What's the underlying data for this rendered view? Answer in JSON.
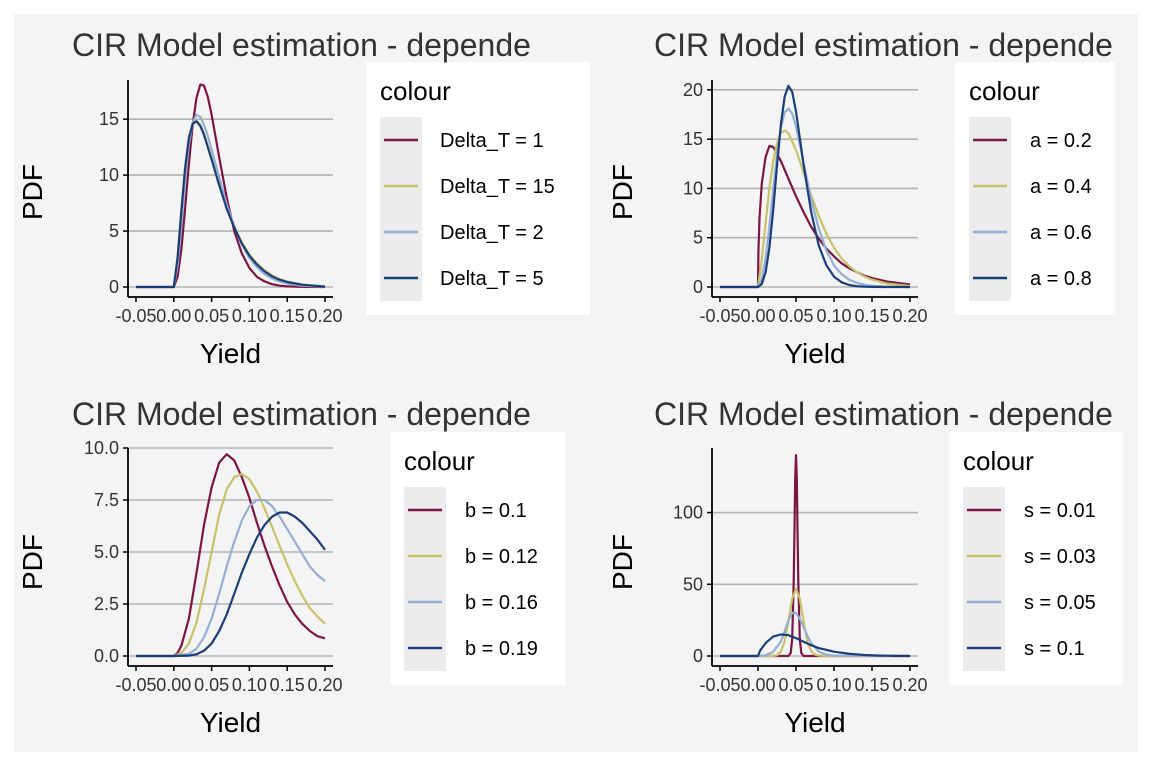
{
  "page": {
    "background": "#f4f4f4",
    "panel_background": "#ffffff"
  },
  "colors": {
    "maroon": "#7b1642",
    "khaki": "#c9c169",
    "lightblue": "#95aed4",
    "navy": "#1a3f78",
    "grid": "#b3b3b3",
    "legend_key_bg": "#ececec",
    "text": "#333333",
    "axis": "#000000"
  },
  "chart_data": [
    {
      "type": "line",
      "title": "CIR Model estimation - depende",
      "xlabel": "Yield",
      "ylabel": "PDF",
      "xlim": [
        -0.05,
        0.2
      ],
      "ylim": [
        0,
        18.5
      ],
      "x_ticks": [
        -0.05,
        0.0,
        0.05,
        0.1,
        0.15,
        0.2
      ],
      "x_tick_labels": [
        "-0.05",
        "0.00",
        "0.05",
        "0.10",
        "0.15",
        "0.20"
      ],
      "y_ticks": [
        0,
        5,
        10,
        15
      ],
      "y_tick_labels": [
        "0",
        "5",
        "10",
        "15"
      ],
      "grid": "horizontal",
      "legend": {
        "title": "colour",
        "position": "right"
      },
      "series": [
        {
          "name": "Delta_T = 1",
          "color": "#7b1642",
          "x": [
            -0.05,
            0.0,
            0.005,
            0.01,
            0.015,
            0.02,
            0.025,
            0.03,
            0.035,
            0.04,
            0.045,
            0.05,
            0.06,
            0.07,
            0.08,
            0.09,
            0.1,
            0.11,
            0.12,
            0.13,
            0.14,
            0.15,
            0.17,
            0.2
          ],
          "y": [
            0,
            0,
            0.9,
            3.4,
            7.0,
            11.0,
            14.5,
            16.9,
            18.1,
            18.0,
            17.0,
            15.4,
            11.6,
            8.0,
            5.0,
            3.0,
            1.7,
            0.9,
            0.5,
            0.25,
            0.12,
            0.06,
            0.01,
            0
          ]
        },
        {
          "name": "Delta_T = 15",
          "color": "#c9c169",
          "x": [
            -0.05,
            0.0,
            0.005,
            0.01,
            0.015,
            0.02,
            0.025,
            0.03,
            0.035,
            0.04,
            0.05,
            0.06,
            0.07,
            0.08,
            0.09,
            0.1,
            0.11,
            0.12,
            0.13,
            0.14,
            0.15,
            0.17,
            0.2
          ],
          "y": [
            0,
            0,
            2.8,
            7.0,
            10.8,
            13.4,
            14.6,
            14.9,
            14.5,
            13.7,
            11.5,
            9.2,
            7.1,
            5.4,
            4.0,
            2.9,
            2.1,
            1.5,
            1.05,
            0.7,
            0.5,
            0.22,
            0.05
          ]
        },
        {
          "name": "Delta_T = 2",
          "color": "#95aed4",
          "x": [
            -0.05,
            0.0,
            0.005,
            0.01,
            0.015,
            0.02,
            0.025,
            0.03,
            0.035,
            0.04,
            0.045,
            0.05,
            0.06,
            0.07,
            0.08,
            0.09,
            0.1,
            0.11,
            0.12,
            0.13,
            0.14,
            0.15,
            0.17,
            0.2
          ],
          "y": [
            0,
            0,
            1.9,
            5.6,
            9.6,
            12.8,
            14.7,
            15.4,
            15.2,
            14.5,
            13.5,
            12.3,
            9.8,
            7.4,
            5.4,
            3.8,
            2.6,
            1.75,
            1.15,
            0.75,
            0.48,
            0.3,
            0.11,
            0.02
          ]
        },
        {
          "name": "Delta_T = 5",
          "color": "#1a3f78",
          "x": [
            -0.05,
            0.0,
            0.005,
            0.01,
            0.015,
            0.02,
            0.025,
            0.03,
            0.035,
            0.04,
            0.05,
            0.06,
            0.07,
            0.08,
            0.09,
            0.1,
            0.11,
            0.12,
            0.13,
            0.14,
            0.15,
            0.17,
            0.2
          ],
          "y": [
            0,
            0,
            2.6,
            6.8,
            10.6,
            13.3,
            14.6,
            14.8,
            14.4,
            13.6,
            11.4,
            9.1,
            7.0,
            5.3,
            3.9,
            2.8,
            2.0,
            1.4,
            0.95,
            0.65,
            0.45,
            0.2,
            0.04
          ]
        }
      ]
    },
    {
      "type": "line",
      "title": "CIR Model estimation - depende",
      "xlabel": "Yield",
      "ylabel": "PDF",
      "xlim": [
        -0.05,
        0.2
      ],
      "ylim": [
        0,
        21
      ],
      "x_ticks": [
        -0.05,
        0.0,
        0.05,
        0.1,
        0.15,
        0.2
      ],
      "x_tick_labels": [
        "-0.05",
        "0.00",
        "0.05",
        "0.10",
        "0.15",
        "0.20"
      ],
      "y_ticks": [
        0,
        5,
        10,
        15,
        20
      ],
      "y_tick_labels": [
        "0",
        "5",
        "10",
        "15",
        "20"
      ],
      "grid": "horizontal",
      "legend": {
        "title": "colour",
        "position": "right"
      },
      "series": [
        {
          "name": "a = 0.2",
          "color": "#7b1642",
          "x": [
            -0.05,
            0.0,
            0.0005,
            0.002,
            0.005,
            0.01,
            0.015,
            0.02,
            0.03,
            0.04,
            0.05,
            0.06,
            0.07,
            0.08,
            0.09,
            0.1,
            0.11,
            0.12,
            0.13,
            0.14,
            0.15,
            0.17,
            0.2
          ],
          "y": [
            0,
            0,
            3.5,
            7.0,
            10.5,
            13.2,
            14.3,
            14.2,
            12.8,
            11.0,
            9.2,
            7.6,
            6.1,
            4.9,
            3.9,
            3.1,
            2.4,
            1.9,
            1.5,
            1.15,
            0.9,
            0.55,
            0.25
          ]
        },
        {
          "name": "a = 0.4",
          "color": "#c9c169",
          "x": [
            -0.05,
            0.0,
            0.005,
            0.01,
            0.015,
            0.02,
            0.025,
            0.03,
            0.035,
            0.04,
            0.05,
            0.06,
            0.07,
            0.08,
            0.09,
            0.1,
            0.11,
            0.12,
            0.13,
            0.14,
            0.15,
            0.17,
            0.2
          ],
          "y": [
            0,
            0,
            2.8,
            6.5,
            10.0,
            12.8,
            14.6,
            15.6,
            15.9,
            15.6,
            13.9,
            11.6,
            9.3,
            7.2,
            5.4,
            4.0,
            2.9,
            2.1,
            1.5,
            1.05,
            0.75,
            0.35,
            0.1
          ]
        },
        {
          "name": "a = 0.6",
          "color": "#95aed4",
          "x": [
            -0.05,
            0.0,
            0.005,
            0.01,
            0.015,
            0.02,
            0.025,
            0.03,
            0.035,
            0.04,
            0.045,
            0.05,
            0.06,
            0.07,
            0.08,
            0.09,
            0.1,
            0.11,
            0.12,
            0.13,
            0.14,
            0.15,
            0.17,
            0.2
          ],
          "y": [
            0,
            0,
            0.8,
            2.9,
            6.2,
            9.9,
            13.4,
            16.1,
            17.7,
            18.1,
            17.6,
            16.3,
            12.6,
            8.9,
            5.9,
            3.7,
            2.2,
            1.3,
            0.75,
            0.42,
            0.23,
            0.12,
            0.03,
            0
          ]
        },
        {
          "name": "a = 0.8",
          "color": "#1a3f78",
          "x": [
            -0.05,
            0.0,
            0.005,
            0.01,
            0.015,
            0.02,
            0.025,
            0.03,
            0.035,
            0.04,
            0.045,
            0.05,
            0.06,
            0.07,
            0.08,
            0.09,
            0.1,
            0.11,
            0.12,
            0.13,
            0.14,
            0.15,
            0.17,
            0.2
          ],
          "y": [
            0,
            0,
            0.3,
            1.5,
            4.0,
            7.8,
            12.3,
            16.4,
            19.3,
            20.4,
            19.8,
            17.8,
            12.4,
            7.6,
            4.2,
            2.2,
            1.05,
            0.48,
            0.2,
            0.08,
            0.03,
            0.01,
            0,
            0
          ]
        }
      ]
    },
    {
      "type": "line",
      "title": "CIR Model estimation - depende",
      "xlabel": "Yield",
      "ylabel": "PDF",
      "xlim": [
        -0.05,
        0.2
      ],
      "ylim": [
        0,
        10
      ],
      "x_ticks": [
        -0.05,
        0.0,
        0.05,
        0.1,
        0.15,
        0.2
      ],
      "x_tick_labels": [
        "-0.05",
        "0.00",
        "0.05",
        "0.10",
        "0.15",
        "0.20"
      ],
      "y_ticks": [
        0,
        2.5,
        5,
        7.5,
        10
      ],
      "y_tick_labels": [
        "0.0",
        "2.5",
        "5.0",
        "7.5",
        "10.0"
      ],
      "grid": "horizontal",
      "legend": {
        "title": "colour",
        "position": "right"
      },
      "series": [
        {
          "name": "b = 0.1",
          "color": "#7b1642",
          "x": [
            -0.05,
            0.0,
            0.005,
            0.01,
            0.02,
            0.03,
            0.04,
            0.05,
            0.06,
            0.07,
            0.08,
            0.09,
            0.1,
            0.11,
            0.12,
            0.13,
            0.14,
            0.15,
            0.16,
            0.17,
            0.18,
            0.19,
            0.2
          ],
          "y": [
            0,
            0,
            0.15,
            0.5,
            1.8,
            4.0,
            6.3,
            8.1,
            9.3,
            9.7,
            9.4,
            8.6,
            7.6,
            6.4,
            5.3,
            4.3,
            3.4,
            2.6,
            2.0,
            1.55,
            1.2,
            0.95,
            0.85
          ]
        },
        {
          "name": "b = 0.12",
          "color": "#c9c169",
          "x": [
            -0.05,
            0.0,
            0.01,
            0.02,
            0.03,
            0.04,
            0.05,
            0.06,
            0.07,
            0.08,
            0.09,
            0.1,
            0.11,
            0.12,
            0.13,
            0.14,
            0.15,
            0.16,
            0.17,
            0.18,
            0.19,
            0.2
          ],
          "y": [
            0,
            0,
            0.15,
            0.6,
            1.6,
            3.2,
            5.0,
            6.8,
            8.0,
            8.6,
            8.75,
            8.5,
            7.9,
            7.1,
            6.2,
            5.3,
            4.4,
            3.6,
            2.9,
            2.3,
            1.9,
            1.55
          ]
        },
        {
          "name": "b = 0.16",
          "color": "#95aed4",
          "x": [
            -0.05,
            0.0,
            0.02,
            0.03,
            0.04,
            0.05,
            0.06,
            0.07,
            0.08,
            0.09,
            0.1,
            0.11,
            0.12,
            0.13,
            0.14,
            0.15,
            0.16,
            0.17,
            0.18,
            0.19,
            0.2
          ],
          "y": [
            0,
            0,
            0.1,
            0.35,
            0.9,
            1.8,
            3.0,
            4.3,
            5.5,
            6.5,
            7.2,
            7.5,
            7.5,
            7.2,
            6.7,
            6.1,
            5.5,
            4.9,
            4.3,
            3.9,
            3.6
          ]
        },
        {
          "name": "b = 0.19",
          "color": "#1a3f78",
          "x": [
            -0.05,
            0.0,
            0.02,
            0.03,
            0.04,
            0.05,
            0.06,
            0.07,
            0.08,
            0.09,
            0.1,
            0.11,
            0.12,
            0.13,
            0.14,
            0.15,
            0.16,
            0.17,
            0.18,
            0.19,
            0.2
          ],
          "y": [
            0,
            0,
            0.02,
            0.08,
            0.25,
            0.6,
            1.2,
            2.0,
            3.0,
            4.0,
            4.9,
            5.7,
            6.3,
            6.7,
            6.9,
            6.9,
            6.7,
            6.4,
            6.0,
            5.6,
            5.1
          ]
        }
      ]
    },
    {
      "type": "line",
      "title": "CIR Model estimation - depende",
      "xlabel": "Yield",
      "ylabel": "PDF",
      "xlim": [
        -0.05,
        0.2
      ],
      "ylim": [
        0,
        145
      ],
      "x_ticks": [
        -0.05,
        0.0,
        0.05,
        0.1,
        0.15,
        0.2
      ],
      "x_tick_labels": [
        "-0.05",
        "0.00",
        "0.05",
        "0.10",
        "0.15",
        "0.20"
      ],
      "y_ticks": [
        0,
        50,
        100
      ],
      "y_tick_labels": [
        "0",
        "50",
        "100"
      ],
      "grid": "horizontal",
      "legend": {
        "title": "colour",
        "position": "right"
      },
      "series": [
        {
          "name": "s = 0.01",
          "color": "#7b1642",
          "x": [
            -0.05,
            0.04,
            0.043,
            0.045,
            0.047,
            0.048,
            0.049,
            0.05,
            0.051,
            0.052,
            0.053,
            0.055,
            0.057,
            0.06,
            0.2
          ],
          "y": [
            0,
            0,
            2,
            12,
            52,
            88,
            124,
            140,
            124,
            88,
            52,
            12,
            2,
            0,
            0
          ]
        },
        {
          "name": "s = 0.03",
          "color": "#c9c169",
          "x": [
            -0.05,
            0.02,
            0.025,
            0.03,
            0.035,
            0.04,
            0.045,
            0.05,
            0.055,
            0.06,
            0.065,
            0.07,
            0.075,
            0.08,
            0.09,
            0.2
          ],
          "y": [
            0,
            0,
            0.5,
            3,
            10,
            24,
            40,
            47,
            40,
            24,
            10,
            3.5,
            1,
            0.3,
            0,
            0
          ]
        },
        {
          "name": "s = 0.05",
          "color": "#95aed4",
          "x": [
            -0.05,
            0.0,
            0.01,
            0.02,
            0.03,
            0.035,
            0.04,
            0.045,
            0.05,
            0.055,
            0.06,
            0.065,
            0.07,
            0.08,
            0.09,
            0.1,
            0.2
          ],
          "y": [
            0,
            0,
            0.5,
            3,
            10,
            17,
            25,
            30,
            30,
            26,
            20,
            14,
            9,
            3,
            1,
            0.2,
            0
          ]
        },
        {
          "name": "s = 0.1",
          "color": "#1a3f78",
          "x": [
            -0.05,
            0.0,
            0.003,
            0.01,
            0.02,
            0.03,
            0.04,
            0.05,
            0.06,
            0.07,
            0.08,
            0.1,
            0.12,
            0.14,
            0.16,
            0.18,
            0.2
          ],
          "y": [
            0,
            0,
            4,
            9,
            13.5,
            15,
            14.5,
            12.5,
            10,
            7.5,
            5.5,
            3,
            1.5,
            0.7,
            0.3,
            0.1,
            0
          ]
        }
      ]
    }
  ]
}
